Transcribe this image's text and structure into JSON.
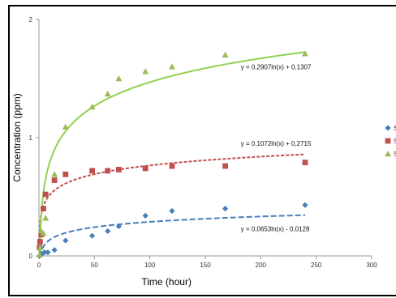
{
  "chart_data": {
    "type": "scatter",
    "xlabel": "Time (hour)",
    "ylabel": "Concentration (ppm)",
    "xlim": [
      0,
      300
    ],
    "ylim": [
      0,
      2
    ],
    "x_ticks": [
      "0",
      "50",
      "100",
      "150",
      "200",
      "250",
      "300"
    ],
    "y_ticks": [
      "0",
      "1",
      "2"
    ],
    "grid": false,
    "legend_position": "right",
    "series": [
      {
        "name": "S",
        "marker": "diamond",
        "color": "#4a7ebb",
        "trend_color": "#4a7ebb",
        "trend_style": "long-dash",
        "x": [
          0.5,
          2,
          5,
          8,
          14,
          24,
          48,
          62,
          72,
          96,
          120,
          168,
          240
        ],
        "y": [
          0.0,
          0.01,
          0.03,
          0.03,
          0.05,
          0.13,
          0.17,
          0.21,
          0.25,
          0.34,
          0.38,
          0.4,
          0.43
        ],
        "trendline": {
          "equation": "y = 0,0653ln(x) - 0,0128",
          "a": 0.0653,
          "b": -0.0128
        }
      },
      {
        "name": "S",
        "marker": "square",
        "color": "#c0504d",
        "trend_color": "#c0504d",
        "trend_style": "short-dash",
        "x": [
          0.5,
          1,
          2,
          4,
          6,
          14,
          24,
          48,
          62,
          72,
          96,
          120,
          168,
          240
        ],
        "y": [
          0.07,
          0.12,
          0.18,
          0.4,
          0.52,
          0.64,
          0.69,
          0.72,
          0.72,
          0.73,
          0.74,
          0.76,
          0.76,
          0.79
        ],
        "trendline": {
          "equation": "y = 0,1072ln(x) + 0,2715",
          "a": 0.1072,
          "b": 0.2715
        }
      },
      {
        "name": "S",
        "marker": "triangle",
        "color": "#9bbb59",
        "trend_color": "#92d050",
        "trend_style": "solid",
        "x": [
          0.5,
          1,
          2,
          4,
          6,
          14,
          24,
          48,
          62,
          72,
          96,
          120,
          168,
          240
        ],
        "y": [
          0.01,
          0.07,
          0.21,
          0.19,
          0.32,
          0.69,
          1.09,
          1.26,
          1.37,
          1.5,
          1.56,
          1.6,
          1.7,
          1.71
        ],
        "trendline": {
          "equation": "y = 0,2907ln(x) + 0,1307",
          "a": 0.2907,
          "b": 0.1307
        }
      }
    ]
  }
}
